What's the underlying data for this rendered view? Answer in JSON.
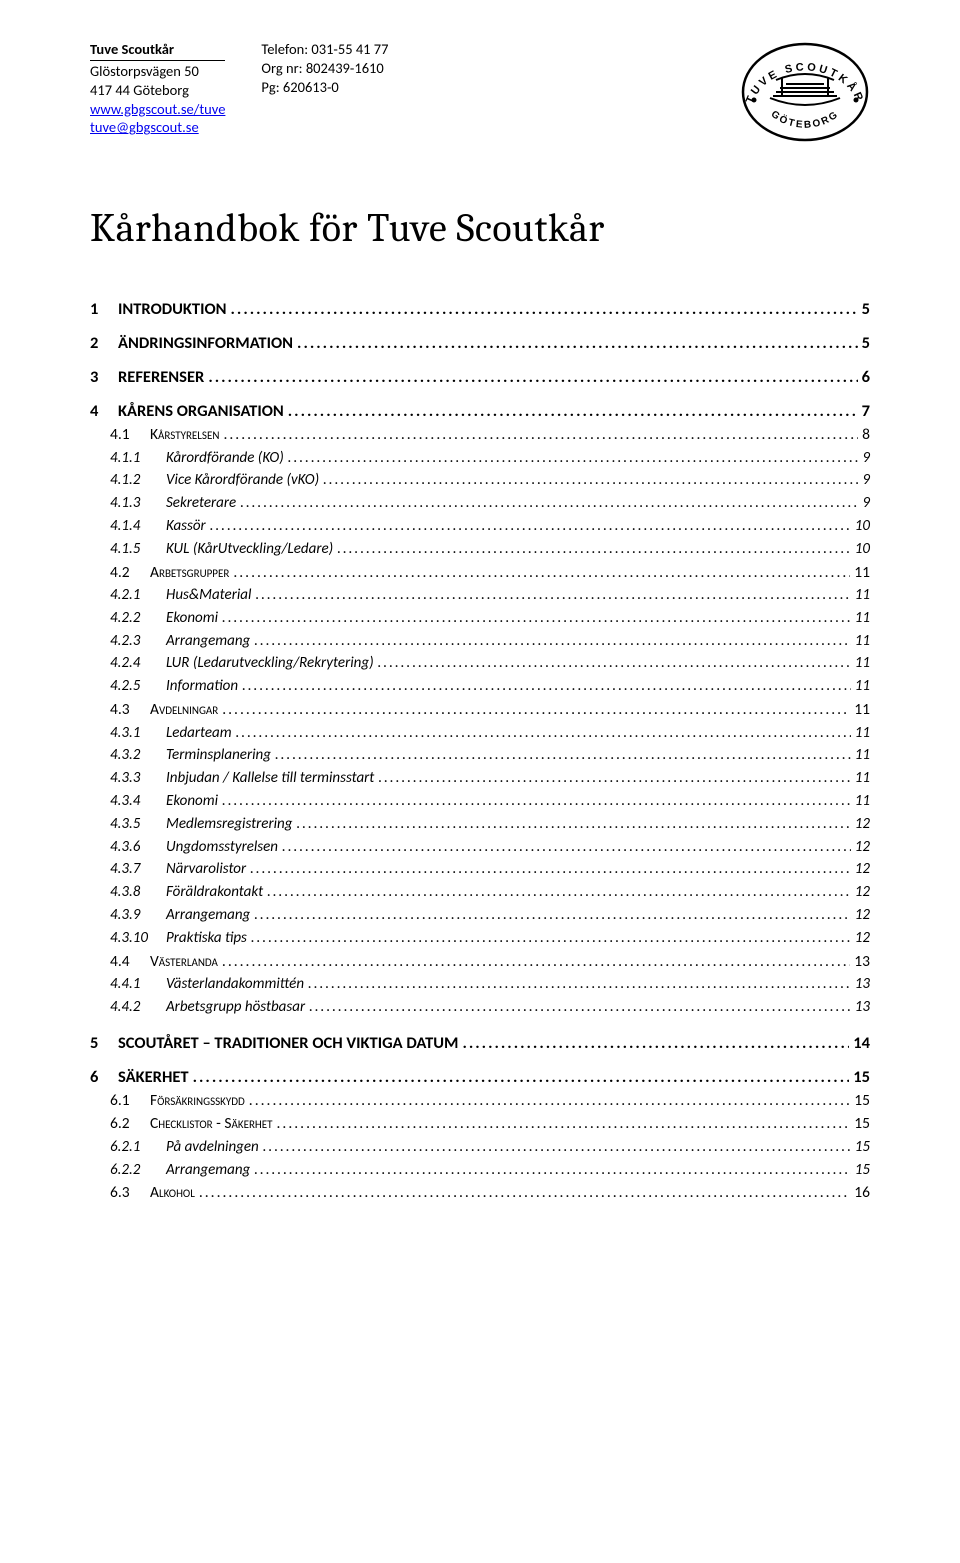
{
  "header": {
    "left_col": {
      "line1_bold": "Tuve Scoutkår",
      "line2": "Glöstorpsvägen 50",
      "line3": "417 44 Göteborg",
      "link1": "www.gbgscout.se/tuve",
      "link2": "tuve@gbgscout.se"
    },
    "right_col": {
      "line1": "Telefon: 031-55 41 77",
      "line2": "Org nr: 802439-1610",
      "line3": "Pg: 620613-0"
    },
    "logo_top": "TUVE SCOUTKÅR",
    "logo_bottom": "GÖTEBORG"
  },
  "title": "Kårhandbok för Tuve Scoutkår",
  "toc": [
    {
      "group": true
    },
    {
      "lvl": 1,
      "num": "1",
      "label": "INTRODUKTION",
      "page": "5"
    },
    {
      "group": true
    },
    {
      "lvl": 1,
      "num": "2",
      "label": "ÄNDRINGSINFORMATION",
      "page": "5"
    },
    {
      "group": true
    },
    {
      "lvl": 1,
      "num": "3",
      "label": "REFERENSER",
      "page": "6"
    },
    {
      "group": true
    },
    {
      "lvl": 1,
      "num": "4",
      "label": "KÅRENS ORGANISATION",
      "page": "7"
    },
    {
      "lvl": 2,
      "num": "4.1",
      "label": "Kårstyrelsen",
      "page": "8"
    },
    {
      "lvl": 3,
      "num": "4.1.1",
      "label": "Kårordförande (KO)",
      "page": "9"
    },
    {
      "lvl": 3,
      "num": "4.1.2",
      "label": "Vice Kårordförande (vKO)",
      "page": "9"
    },
    {
      "lvl": 3,
      "num": "4.1.3",
      "label": "Sekreterare",
      "page": "9"
    },
    {
      "lvl": 3,
      "num": "4.1.4",
      "label": "Kassör",
      "page": "10"
    },
    {
      "lvl": 3,
      "num": "4.1.5",
      "label": "KUL (KårUtveckling/Ledare)",
      "page": "10"
    },
    {
      "lvl": 2,
      "num": "4.2",
      "label": "Arbetsgrupper",
      "page": "11"
    },
    {
      "lvl": 3,
      "num": "4.2.1",
      "label": "Hus&Material",
      "page": "11"
    },
    {
      "lvl": 3,
      "num": "4.2.2",
      "label": "Ekonomi",
      "page": "11"
    },
    {
      "lvl": 3,
      "num": "4.2.3",
      "label": "Arrangemang",
      "page": "11"
    },
    {
      "lvl": 3,
      "num": "4.2.4",
      "label": "LUR (Ledarutveckling/Rekrytering)",
      "page": "11"
    },
    {
      "lvl": 3,
      "num": "4.2.5",
      "label": "Information",
      "page": "11"
    },
    {
      "lvl": 2,
      "num": "4.3",
      "label": "Avdelningar",
      "page": "11"
    },
    {
      "lvl": 3,
      "num": "4.3.1",
      "label": "Ledarteam",
      "page": "11"
    },
    {
      "lvl": 3,
      "num": "4.3.2",
      "label": "Terminsplanering",
      "page": "11"
    },
    {
      "lvl": 3,
      "num": "4.3.3",
      "label": "Inbjudan / Kallelse till terminsstart",
      "page": "11"
    },
    {
      "lvl": 3,
      "num": "4.3.4",
      "label": "Ekonomi",
      "page": "11"
    },
    {
      "lvl": 3,
      "num": "4.3.5",
      "label": "Medlemsregistrering",
      "page": "12"
    },
    {
      "lvl": 3,
      "num": "4.3.6",
      "label": "Ungdomsstyrelsen",
      "page": "12"
    },
    {
      "lvl": 3,
      "num": "4.3.7",
      "label": "Närvarolistor",
      "page": "12"
    },
    {
      "lvl": 3,
      "num": "4.3.8",
      "label": "Föräldrakontakt",
      "page": "12"
    },
    {
      "lvl": 3,
      "num": "4.3.9",
      "label": "Arrangemang",
      "page": "12"
    },
    {
      "lvl": 3,
      "num": "4.3.10",
      "label": "Praktiska tips",
      "page": "12"
    },
    {
      "lvl": 2,
      "num": "4.4",
      "label": "Västerlanda",
      "page": "13"
    },
    {
      "lvl": 3,
      "num": "4.4.1",
      "label": "Västerlandakommittén",
      "page": "13"
    },
    {
      "lvl": 3,
      "num": "4.4.2",
      "label": "Arbetsgrupp höstbasar",
      "page": "13"
    },
    {
      "group": true
    },
    {
      "lvl": 1,
      "num": "5",
      "label": "SCOUTÅRET – TRADITIONER OCH VIKTIGA DATUM",
      "page": "14"
    },
    {
      "group": true
    },
    {
      "lvl": 1,
      "num": "6",
      "label": "SÄKERHET",
      "page": "15"
    },
    {
      "lvl": 2,
      "num": "6.1",
      "label": "Försäkringsskydd",
      "page": "15"
    },
    {
      "lvl": 2,
      "num": "6.2",
      "label": "Checklistor - Säkerhet",
      "page": "15"
    },
    {
      "lvl": 3,
      "num": "6.2.1",
      "label": "På avdelningen",
      "page": "15"
    },
    {
      "lvl": 3,
      "num": "6.2.2",
      "label": "Arrangemang",
      "page": "15"
    },
    {
      "lvl": 2,
      "num": "6.3",
      "label": "Alkohol",
      "page": "16"
    }
  ]
}
